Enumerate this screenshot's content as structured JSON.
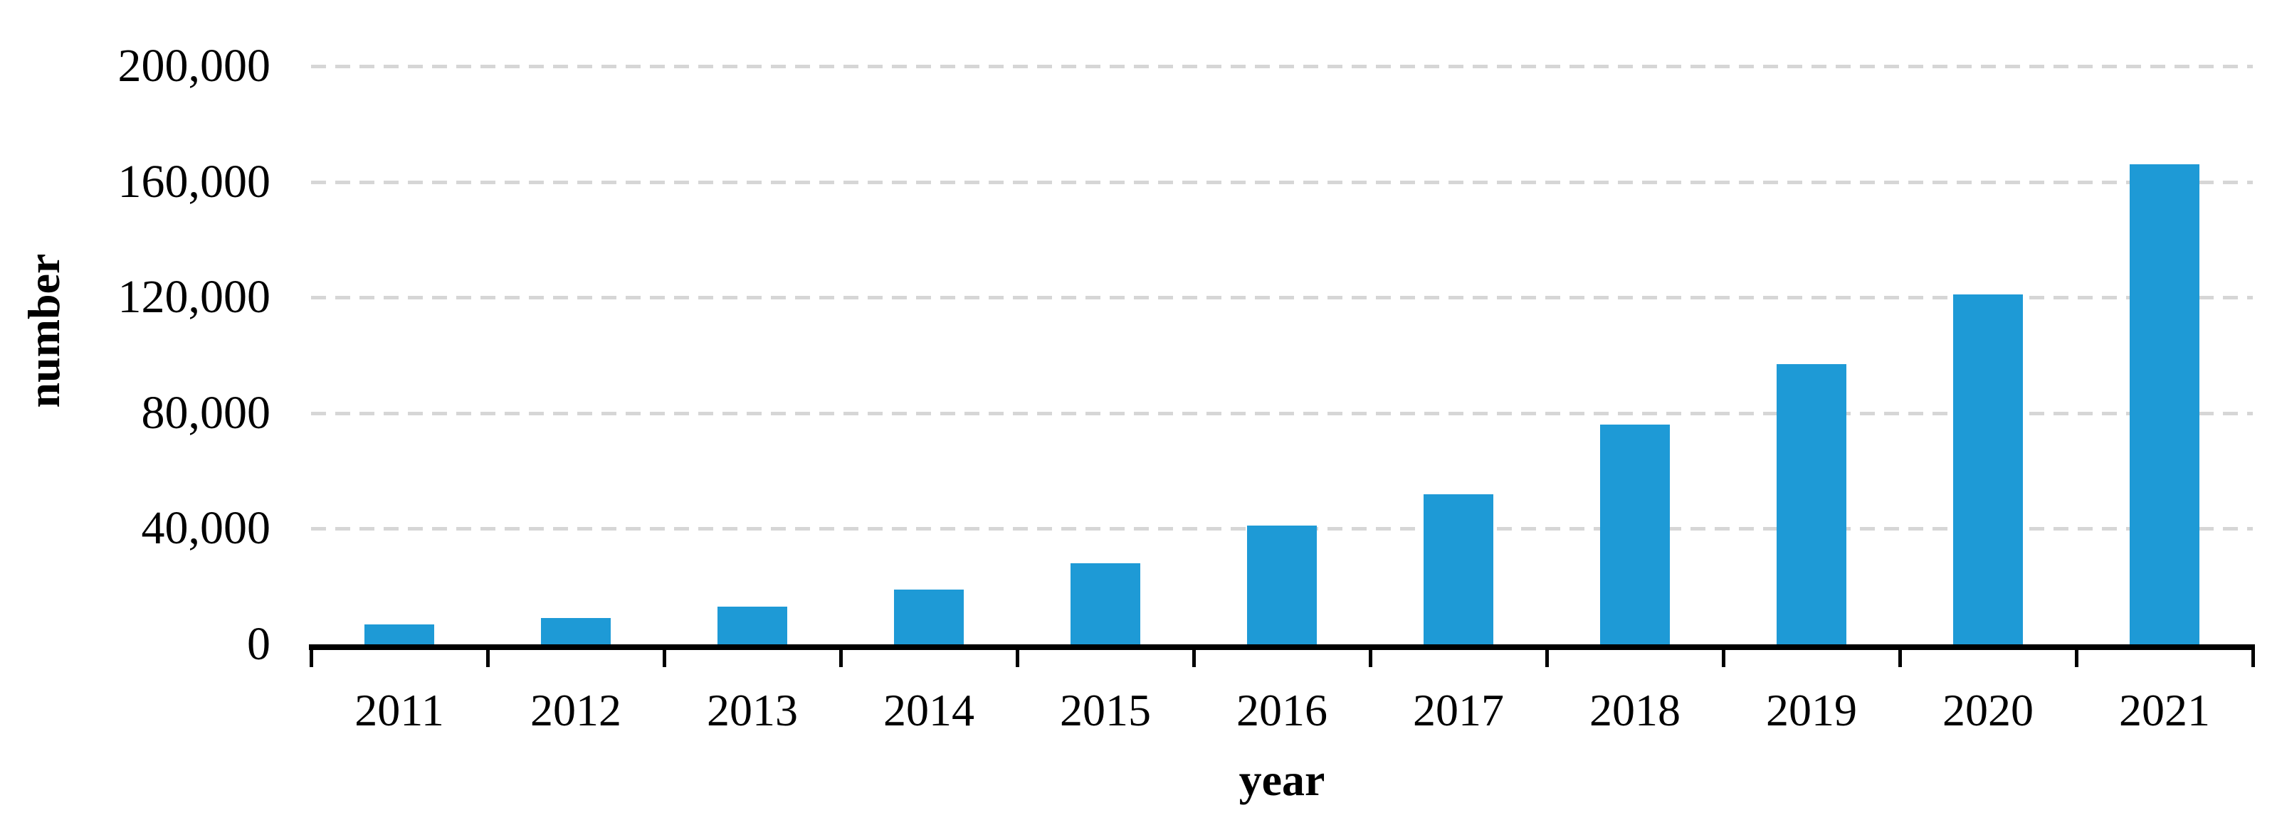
{
  "chart_data": {
    "type": "bar",
    "title": "",
    "xlabel": "year",
    "ylabel": "number",
    "categories": [
      "2011",
      "2012",
      "2013",
      "2014",
      "2015",
      "2016",
      "2017",
      "2018",
      "2019",
      "2020",
      "2021"
    ],
    "values": [
      7000,
      9000,
      13000,
      19000,
      28000,
      41000,
      52000,
      76000,
      97000,
      121000,
      166000
    ],
    "ylim": [
      0,
      200000
    ],
    "ytick_interval": 40000,
    "yticks": [
      {
        "value": 0,
        "label": "0"
      },
      {
        "value": 40000,
        "label": "40,000"
      },
      {
        "value": 80000,
        "label": "80,000"
      },
      {
        "value": 120000,
        "label": "120,000"
      },
      {
        "value": 160000,
        "label": "160,000"
      },
      {
        "value": 200000,
        "label": "200,000"
      }
    ],
    "grid": "horizontal-dashed",
    "legend": "none",
    "colors": {
      "bar": "#1e9ad6",
      "gridline": "#d6d6d6",
      "axis": "#000000",
      "text": "#000000",
      "background": "#ffffff"
    }
  }
}
